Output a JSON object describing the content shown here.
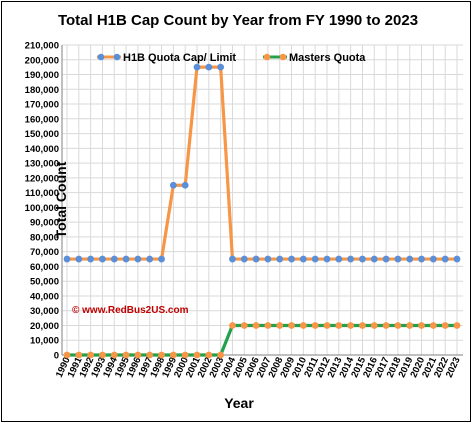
{
  "chart_data": {
    "type": "line",
    "title": "Total H1B Cap Count  by Year from FY 1990 to 2023",
    "xlabel": "Year",
    "ylabel": "Total Count",
    "ylim": [
      0,
      210000
    ],
    "ytick_step": 10000,
    "yticks": [
      "0",
      "10,000",
      "20,000",
      "30,000",
      "40,000",
      "50,000",
      "60,000",
      "70,000",
      "80,000",
      "90,000",
      "100,000",
      "110,000",
      "120,000",
      "130,000",
      "140,000",
      "150,000",
      "160,000",
      "170,000",
      "180,000",
      "190,000",
      "200,000",
      "210,000"
    ],
    "categories": [
      "1990",
      "1991",
      "1992",
      "1993",
      "1994",
      "1995",
      "1996",
      "1997",
      "1998",
      "1999",
      "2000",
      "2001",
      "2002",
      "2003",
      "2004",
      "2005",
      "2006",
      "2007",
      "2008",
      "2009",
      "2010",
      "2011",
      "2012",
      "2013",
      "2014",
      "2015",
      "2016",
      "2017",
      "2018",
      "2019",
      "2020",
      "2021",
      "2022",
      "2023"
    ],
    "series": [
      {
        "name": "H1B Quota Cap/ Limit",
        "line_color": "#f79646",
        "marker_color": "#5b8fd8",
        "values": [
          65000,
          65000,
          65000,
          65000,
          65000,
          65000,
          65000,
          65000,
          65000,
          115000,
          115000,
          195000,
          195000,
          195000,
          65000,
          65000,
          65000,
          65000,
          65000,
          65000,
          65000,
          65000,
          65000,
          65000,
          65000,
          65000,
          65000,
          65000,
          65000,
          65000,
          65000,
          65000,
          65000,
          65000
        ]
      },
      {
        "name": "Masters Quota",
        "line_color": "#22a04b",
        "marker_color": "#f79646",
        "values": [
          0,
          0,
          0,
          0,
          0,
          0,
          0,
          0,
          0,
          0,
          0,
          0,
          0,
          0,
          20000,
          20000,
          20000,
          20000,
          20000,
          20000,
          20000,
          20000,
          20000,
          20000,
          20000,
          20000,
          20000,
          20000,
          20000,
          20000,
          20000,
          20000,
          20000,
          20000
        ]
      }
    ],
    "grid": true,
    "legend_position": "top",
    "watermark": "© www.RedBus2US.com"
  }
}
